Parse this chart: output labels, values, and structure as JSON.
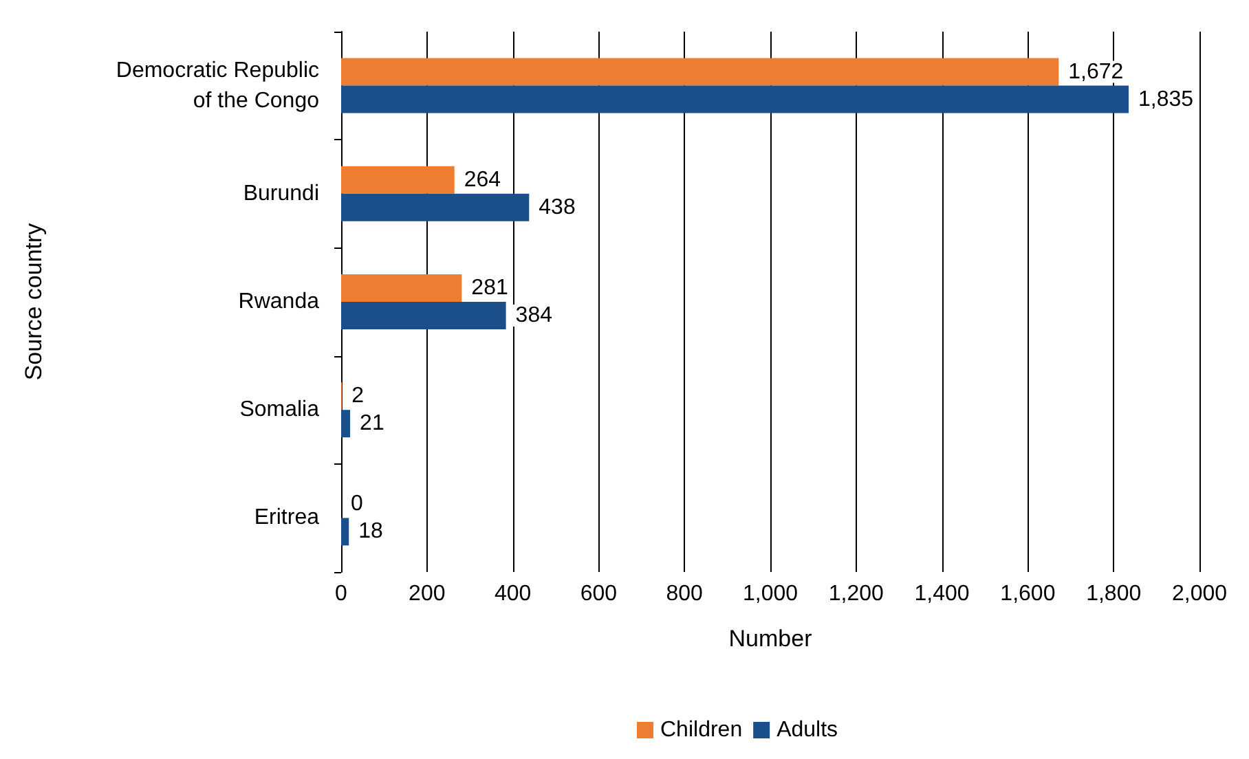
{
  "chart_data": {
    "type": "bar",
    "orientation": "horizontal",
    "xlabel": "Number",
    "ylabel": "Source country",
    "categories": [
      "Democratic Republic\nof the Congo",
      "Burundi",
      "Rwanda",
      "Somalia",
      "Eritrea"
    ],
    "series": [
      {
        "name": "Children",
        "color": "#ed7d31",
        "values": [
          1672,
          264,
          281,
          2,
          0
        ],
        "value_labels": [
          "1,672",
          "264",
          "281",
          "2",
          "0"
        ]
      },
      {
        "name": "Adults",
        "color": "#1a4f8c",
        "values": [
          1835,
          438,
          384,
          21,
          18
        ],
        "value_labels": [
          "1,835",
          "438",
          "384",
          "21",
          "18"
        ]
      }
    ],
    "xlim": [
      0,
      2000
    ],
    "xticks": [
      0,
      200,
      400,
      600,
      800,
      {
        "value": 1000,
        "label": "1,000"
      },
      {
        "value": 1200,
        "label": "1,200"
      },
      {
        "value": 1400,
        "label": "1,400"
      },
      {
        "value": 1600,
        "label": "1,600"
      },
      {
        "value": 1800,
        "label": "1,800"
      },
      {
        "value": 2000,
        "label": "2,000"
      }
    ],
    "grid": "x",
    "legend": "bottom"
  }
}
